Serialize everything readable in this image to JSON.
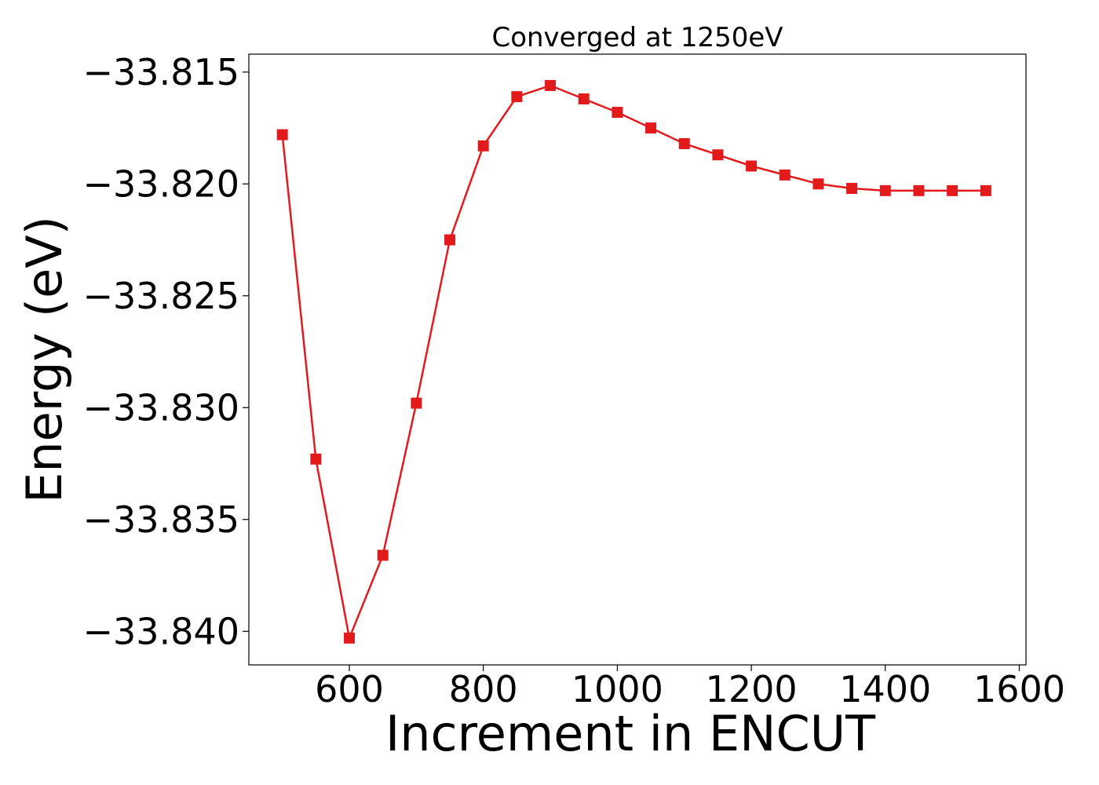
{
  "chart_data": {
    "type": "line",
    "title": "Converged at 1250eV",
    "xlabel": "Increment in ENCUT",
    "ylabel": "Energy (eV)",
    "xlim": [
      450,
      1610
    ],
    "ylim": [
      -33.8415,
      -33.8142
    ],
    "xticks": [
      600,
      800,
      1000,
      1200,
      1400,
      1600
    ],
    "xtick_labels": [
      "600",
      "800",
      "1000",
      "1200",
      "1400",
      "1600"
    ],
    "yticks": [
      -33.815,
      -33.82,
      -33.825,
      -33.83,
      -33.835,
      -33.84
    ],
    "ytick_labels": [
      "−33.815",
      "−33.820",
      "−33.825",
      "−33.830",
      "−33.835",
      "−33.840"
    ],
    "grid": false,
    "marker": "square",
    "color": "#e31a1c",
    "series": [
      {
        "x": [
          500,
          550,
          600,
          650,
          700,
          750,
          800,
          850,
          900,
          950,
          1000,
          1050,
          1100,
          1150,
          1200,
          1250,
          1300,
          1350,
          1400,
          1450,
          1500,
          1550
        ],
        "y": [
          -33.8178,
          -33.8323,
          -33.8403,
          -33.8366,
          -33.8298,
          -33.8225,
          -33.8183,
          -33.8161,
          -33.8156,
          -33.8162,
          -33.8168,
          -33.8175,
          -33.8182,
          -33.8187,
          -33.8192,
          -33.8196,
          -33.82,
          -33.8202,
          -33.8203,
          -33.8203,
          -33.8203,
          -33.8203
        ]
      }
    ]
  }
}
